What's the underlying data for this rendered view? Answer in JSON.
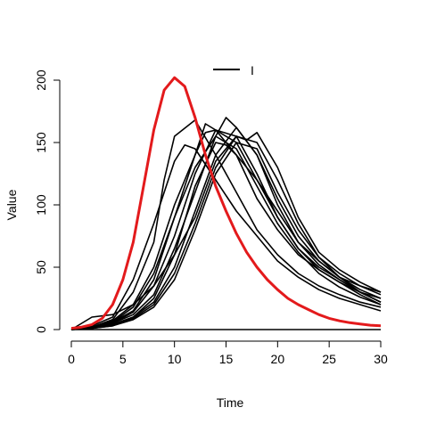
{
  "chart_data": {
    "type": "line",
    "title": "",
    "xlabel": "Time",
    "ylabel": "Value",
    "xlim": [
      0,
      30
    ],
    "ylim": [
      0,
      200
    ],
    "x_ticks": [
      0,
      5,
      10,
      15,
      20,
      25,
      30
    ],
    "y_ticks": [
      0,
      50,
      100,
      150,
      200
    ],
    "grid": false,
    "legend": {
      "position": "top-center",
      "entries": [
        {
          "label": "I",
          "color": "#000000"
        }
      ]
    },
    "reference_curve": {
      "color": "#e31a1c",
      "x": [
        0,
        1,
        2,
        3,
        4,
        5,
        6,
        7,
        8,
        9,
        10,
        11,
        12,
        13,
        14,
        15,
        16,
        17,
        18,
        19,
        20,
        21,
        22,
        23,
        24,
        25,
        26,
        27,
        28,
        29,
        30
      ],
      "y": [
        1,
        2,
        4,
        9,
        20,
        40,
        70,
        115,
        160,
        192,
        202,
        195,
        170,
        140,
        115,
        95,
        77,
        62,
        50,
        40,
        32,
        25,
        20,
        16,
        12,
        9,
        7,
        5.5,
        4.5,
        3.5,
        3
      ]
    },
    "series_color": "#000000",
    "series": [
      {
        "x": [
          0,
          2,
          4,
          6,
          8,
          9,
          10,
          12,
          14,
          16,
          18,
          20,
          22,
          24,
          26,
          28,
          30
        ],
        "y": [
          0,
          2,
          8,
          30,
          70,
          120,
          155,
          168,
          140,
          110,
          80,
          60,
          45,
          35,
          28,
          22,
          18
        ]
      },
      {
        "x": [
          0,
          2,
          4,
          6,
          8,
          10,
          11,
          12,
          14,
          16,
          18,
          20,
          22,
          24,
          26,
          28,
          30
        ],
        "y": [
          0,
          3,
          10,
          40,
          85,
          135,
          148,
          145,
          120,
          95,
          75,
          55,
          42,
          32,
          25,
          20,
          15
        ]
      },
      {
        "x": [
          0,
          2,
          4,
          6,
          8,
          10,
          12,
          13,
          14,
          16,
          18,
          20,
          22,
          24,
          26,
          28,
          30
        ],
        "y": [
          0,
          2,
          6,
          15,
          40,
          90,
          140,
          165,
          160,
          140,
          105,
          80,
          60,
          48,
          38,
          30,
          25
        ]
      },
      {
        "x": [
          0,
          2,
          4,
          6,
          8,
          10,
          12,
          14,
          15,
          16,
          18,
          20,
          22,
          24,
          26,
          28,
          30
        ],
        "y": [
          0,
          1,
          5,
          12,
          28,
          65,
          110,
          155,
          170,
          162,
          140,
          105,
          75,
          55,
          42,
          35,
          30
        ]
      },
      {
        "x": [
          0,
          2,
          4,
          6,
          8,
          10,
          12,
          14,
          16,
          17,
          18,
          20,
          22,
          24,
          26,
          28,
          30
        ],
        "y": [
          0,
          10,
          12,
          20,
          35,
          60,
          90,
          135,
          155,
          152,
          158,
          130,
          90,
          62,
          48,
          38,
          30
        ]
      },
      {
        "x": [
          0,
          2,
          4,
          6,
          8,
          10,
          12,
          14,
          15,
          16,
          18,
          20,
          22,
          24,
          26,
          28,
          30
        ],
        "y": [
          0,
          1,
          4,
          10,
          25,
          60,
          115,
          150,
          148,
          140,
          120,
          90,
          65,
          50,
          40,
          30,
          22
        ]
      },
      {
        "x": [
          0,
          2,
          4,
          6,
          8,
          10,
          12,
          13,
          14,
          16,
          18,
          20,
          22,
          24,
          26,
          28,
          30
        ],
        "y": [
          0,
          2,
          7,
          20,
          50,
          100,
          140,
          158,
          160,
          150,
          120,
          95,
          70,
          55,
          42,
          32,
          25
        ]
      },
      {
        "x": [
          0,
          2,
          4,
          6,
          8,
          10,
          12,
          14,
          16,
          18,
          20,
          22,
          24,
          26,
          28,
          30
        ],
        "y": [
          0,
          1,
          3,
          8,
          18,
          40,
          80,
          125,
          150,
          145,
          110,
          80,
          58,
          45,
          35,
          28
        ]
      },
      {
        "x": [
          0,
          2,
          4,
          6,
          8,
          10,
          12,
          14,
          16,
          18,
          20,
          22,
          24,
          26,
          28,
          30
        ],
        "y": [
          0,
          2,
          5,
          14,
          35,
          75,
          125,
          160,
          155,
          125,
          90,
          65,
          48,
          38,
          28,
          20
        ]
      },
      {
        "x": [
          0,
          2,
          4,
          6,
          8,
          10,
          12,
          14,
          16,
          18,
          20,
          22,
          24,
          26,
          28,
          30
        ],
        "y": [
          0,
          1,
          4,
          10,
          22,
          50,
          95,
          140,
          162,
          140,
          100,
          70,
          52,
          40,
          30,
          22
        ]
      },
      {
        "x": [
          0,
          2,
          4,
          6,
          8,
          10,
          12,
          14,
          16,
          18,
          20,
          22,
          24,
          26,
          28,
          30
        ],
        "y": [
          0,
          2,
          6,
          18,
          45,
          90,
          130,
          155,
          145,
          115,
          85,
          62,
          45,
          34,
          26,
          20
        ]
      },
      {
        "x": [
          0,
          2,
          4,
          6,
          8,
          10,
          12,
          14,
          16,
          18,
          20,
          22,
          24,
          26,
          28,
          30
        ],
        "y": [
          0,
          1,
          3,
          9,
          20,
          45,
          85,
          130,
          155,
          150,
          120,
          85,
          58,
          42,
          30,
          22
        ]
      }
    ],
    "baseline": {
      "y": 0
    }
  }
}
